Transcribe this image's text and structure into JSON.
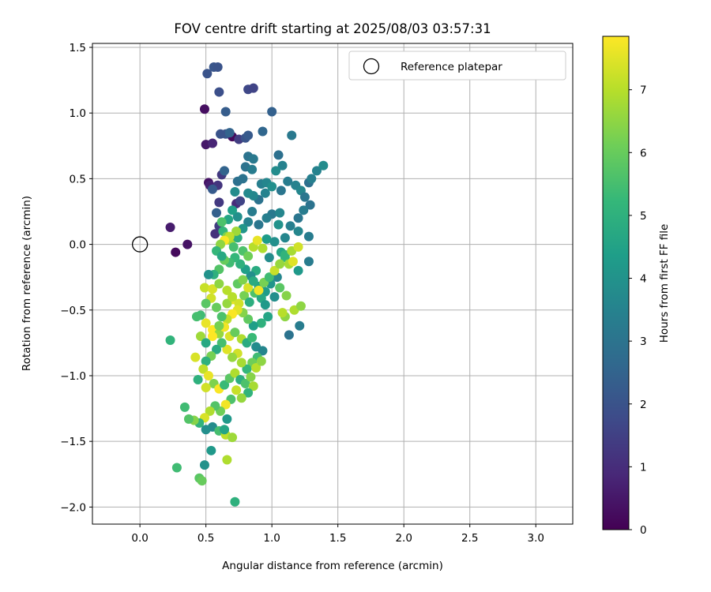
{
  "chart_data": {
    "type": "scatter",
    "title": "FOV centre drift starting at 2025/08/03 03:57:31",
    "xlabel": "Angular distance from reference (arcmin)",
    "ylabel": "Rotation from reference (arcmin)",
    "xlim": [
      -0.36,
      3.28
    ],
    "ylim": [
      -2.13,
      1.53
    ],
    "xticks": [
      0.0,
      0.5,
      1.0,
      1.5,
      2.0,
      2.5,
      3.0
    ],
    "xtick_labels": [
      "0.0",
      "0.5",
      "1.0",
      "1.5",
      "2.0",
      "2.5",
      "3.0"
    ],
    "yticks": [
      1.5,
      1.0,
      0.5,
      0.0,
      -0.5,
      -1.0,
      -1.5,
      -2.0
    ],
    "ytick_labels": [
      "1.5",
      "1.0",
      "0.5",
      "0.0",
      "−0.5",
      "−1.0",
      "−1.5",
      "−2.0"
    ],
    "grid": true,
    "legend": {
      "placement": "top-right",
      "entries": [
        "Reference platepar"
      ]
    },
    "reference_point": {
      "x": 0.0,
      "y": 0.0
    },
    "colorbar": {
      "label": "Hours from first FF file",
      "range": [
        0,
        7.85
      ],
      "ticks": [
        0,
        1,
        2,
        3,
        4,
        5,
        6,
        7
      ],
      "tick_labels": [
        "0",
        "1",
        "2",
        "3",
        "4",
        "5",
        "6",
        "7"
      ],
      "colormap": "viridis"
    },
    "series": [
      {
        "points": [
          [
            0.23,
            0.13,
            0.6
          ],
          [
            0.27,
            -0.06,
            0.2
          ],
          [
            0.36,
            0.0,
            0.4
          ],
          [
            0.49,
            1.03,
            0.3
          ],
          [
            0.5,
            0.76,
            0.5
          ],
          [
            0.52,
            0.47,
            0.4
          ],
          [
            0.55,
            0.77,
            0.8
          ],
          [
            0.53,
            0.45,
            0.7
          ],
          [
            0.7,
            0.82,
            0.2
          ],
          [
            0.51,
            1.3,
            2.0
          ],
          [
            0.56,
            1.35,
            2.1
          ],
          [
            0.59,
            1.35,
            2.0
          ],
          [
            0.6,
            1.16,
            1.9
          ],
          [
            0.65,
            1.01,
            2.3
          ],
          [
            0.82,
            1.18,
            1.7
          ],
          [
            0.86,
            1.19,
            1.6
          ],
          [
            0.65,
            0.84,
            2.1
          ],
          [
            0.68,
            0.85,
            2.5
          ],
          [
            0.61,
            0.84,
            2.0
          ],
          [
            0.75,
            0.8,
            1.4
          ],
          [
            0.8,
            0.81,
            2.0
          ],
          [
            0.82,
            0.83,
            2.2
          ],
          [
            0.59,
            0.45,
            1.2
          ],
          [
            0.62,
            0.53,
            1.3
          ],
          [
            0.64,
            0.56,
            2.5
          ],
          [
            0.6,
            0.32,
            1.3
          ],
          [
            0.55,
            0.42,
            2.2
          ],
          [
            0.58,
            0.24,
            2.4
          ],
          [
            0.6,
            0.14,
            1.4
          ],
          [
            0.57,
            0.08,
            1.1
          ],
          [
            0.73,
            0.31,
            1.0
          ],
          [
            0.76,
            0.33,
            1.6
          ],
          [
            0.82,
            0.67,
            3.0
          ],
          [
            0.86,
            0.65,
            3.2
          ],
          [
            0.93,
            0.86,
            2.6
          ],
          [
            1.0,
            1.01,
            2.4
          ],
          [
            1.15,
            0.83,
            3.2
          ],
          [
            1.05,
            0.68,
            2.9
          ],
          [
            1.08,
            0.6,
            3.5
          ],
          [
            0.8,
            0.59,
            3.0
          ],
          [
            0.85,
            0.57,
            3.3
          ],
          [
            0.92,
            0.46,
            3.4
          ],
          [
            0.96,
            0.47,
            3.6
          ],
          [
            1.0,
            0.44,
            3.9
          ],
          [
            1.03,
            0.56,
            3.8
          ],
          [
            1.07,
            0.41,
            3.1
          ],
          [
            0.95,
            0.39,
            3.5
          ],
          [
            0.9,
            0.34,
            3.0
          ],
          [
            0.86,
            0.37,
            3.6
          ],
          [
            0.82,
            0.39,
            3.7
          ],
          [
            0.72,
            0.4,
            3.8
          ],
          [
            0.74,
            0.48,
            2.9
          ],
          [
            0.78,
            0.5,
            3.0
          ],
          [
            1.12,
            0.48,
            3.3
          ],
          [
            1.18,
            0.45,
            3.5
          ],
          [
            1.22,
            0.41,
            3.6
          ],
          [
            1.25,
            0.36,
            3.1
          ],
          [
            1.28,
            0.47,
            2.9
          ],
          [
            1.3,
            0.5,
            3.4
          ],
          [
            1.34,
            0.56,
            3.5
          ],
          [
            1.39,
            0.6,
            3.8
          ],
          [
            1.29,
            0.3,
            3.0
          ],
          [
            1.24,
            0.26,
            3.3
          ],
          [
            1.2,
            0.2,
            3.1
          ],
          [
            1.14,
            0.14,
            3.4
          ],
          [
            1.2,
            0.1,
            3.6
          ],
          [
            1.28,
            0.06,
            3.3
          ],
          [
            1.1,
            0.05,
            3.6
          ],
          [
            1.05,
            0.15,
            4.0
          ],
          [
            1.0,
            0.23,
            3.2
          ],
          [
            1.06,
            0.24,
            3.6
          ],
          [
            0.96,
            0.2,
            3.4
          ],
          [
            0.9,
            0.15,
            3.1
          ],
          [
            0.85,
            0.25,
            3.3
          ],
          [
            0.82,
            0.17,
            3.5
          ],
          [
            0.78,
            0.12,
            4.1
          ],
          [
            0.74,
            0.21,
            3.9
          ],
          [
            0.7,
            0.26,
            4.4
          ],
          [
            0.67,
            0.19,
            4.6
          ],
          [
            0.63,
            0.1,
            5.2
          ],
          [
            0.62,
            0.17,
            5.6
          ],
          [
            0.66,
            0.06,
            6.3
          ],
          [
            0.69,
            0.03,
            6.8
          ],
          [
            0.71,
            -0.02,
            5.5
          ],
          [
            0.74,
            0.05,
            4.9
          ],
          [
            0.78,
            -0.05,
            5.6
          ],
          [
            0.82,
            -0.09,
            6.1
          ],
          [
            0.86,
            -0.02,
            7.0
          ],
          [
            0.89,
            0.03,
            7.6
          ],
          [
            0.93,
            -0.03,
            6.9
          ],
          [
            0.96,
            0.04,
            4.3
          ],
          [
            0.98,
            -0.1,
            3.8
          ],
          [
            1.02,
            0.02,
            3.9
          ],
          [
            1.07,
            -0.06,
            4.6
          ],
          [
            1.1,
            -0.1,
            5.2
          ],
          [
            1.13,
            -0.15,
            6.8
          ],
          [
            1.16,
            -0.13,
            7.5
          ],
          [
            1.2,
            -0.2,
            4.2
          ],
          [
            1.28,
            -0.13,
            3.3
          ],
          [
            1.04,
            -0.25,
            3.6
          ],
          [
            0.99,
            -0.3,
            4.1
          ],
          [
            0.95,
            -0.36,
            4.3
          ],
          [
            0.9,
            -0.32,
            4.5
          ],
          [
            0.88,
            -0.2,
            4.8
          ],
          [
            0.84,
            -0.24,
            3.9
          ],
          [
            0.8,
            -0.19,
            4.4
          ],
          [
            0.76,
            -0.15,
            5.0
          ],
          [
            0.72,
            -0.1,
            5.2
          ],
          [
            0.68,
            -0.14,
            5.4
          ],
          [
            0.64,
            -0.12,
            6.0
          ],
          [
            0.6,
            -0.19,
            5.7
          ],
          [
            0.56,
            -0.23,
            5.0
          ],
          [
            0.52,
            -0.23,
            4.0
          ],
          [
            0.49,
            -0.33,
            7.2
          ],
          [
            0.55,
            -0.34,
            7.4
          ],
          [
            0.6,
            -0.3,
            6.5
          ],
          [
            0.66,
            -0.35,
            7.0
          ],
          [
            0.7,
            -0.42,
            7.6
          ],
          [
            0.75,
            -0.45,
            7.3
          ],
          [
            0.79,
            -0.39,
            6.2
          ],
          [
            0.83,
            -0.44,
            4.9
          ],
          [
            0.87,
            -0.37,
            5.6
          ],
          [
            0.92,
            -0.41,
            4.7
          ],
          [
            0.95,
            -0.46,
            4.2
          ],
          [
            1.02,
            -0.4,
            3.9
          ],
          [
            1.06,
            -0.33,
            5.8
          ],
          [
            1.11,
            -0.39,
            6.4
          ],
          [
            1.17,
            -0.5,
            6.9
          ],
          [
            1.22,
            -0.47,
            6.5
          ],
          [
            1.21,
            -0.62,
            3.3
          ],
          [
            1.13,
            -0.69,
            3.0
          ],
          [
            1.1,
            -0.55,
            6.5
          ],
          [
            1.08,
            -0.52,
            7.0
          ],
          [
            0.97,
            -0.55,
            4.6
          ],
          [
            0.92,
            -0.6,
            5.0
          ],
          [
            0.86,
            -0.62,
            4.4
          ],
          [
            0.82,
            -0.57,
            5.9
          ],
          [
            0.78,
            -0.52,
            6.4
          ],
          [
            0.74,
            -0.5,
            7.5
          ],
          [
            0.7,
            -0.53,
            7.8
          ],
          [
            0.66,
            -0.57,
            7.1
          ],
          [
            0.62,
            -0.55,
            5.6
          ],
          [
            0.58,
            -0.48,
            6.0
          ],
          [
            0.54,
            -0.41,
            7.3
          ],
          [
            0.5,
            -0.45,
            5.8
          ],
          [
            0.46,
            -0.54,
            5.4
          ],
          [
            0.5,
            -0.6,
            7.6
          ],
          [
            0.55,
            -0.65,
            7.9
          ],
          [
            0.6,
            -0.68,
            6.6
          ],
          [
            0.64,
            -0.63,
            7.7
          ],
          [
            0.68,
            -0.7,
            7.4
          ],
          [
            0.72,
            -0.67,
            6.0
          ],
          [
            0.77,
            -0.72,
            6.9
          ],
          [
            0.81,
            -0.75,
            4.8
          ],
          [
            0.85,
            -0.71,
            5.3
          ],
          [
            0.88,
            -0.78,
            3.8
          ],
          [
            0.93,
            -0.81,
            3.6
          ],
          [
            0.89,
            -0.86,
            5.4
          ],
          [
            0.85,
            -0.9,
            6.1
          ],
          [
            0.81,
            -0.95,
            5.2
          ],
          [
            0.77,
            -0.9,
            6.8
          ],
          [
            0.74,
            -0.83,
            7.3
          ],
          [
            0.7,
            -0.86,
            6.6
          ],
          [
            0.66,
            -0.8,
            7.5
          ],
          [
            0.62,
            -0.75,
            5.5
          ],
          [
            0.58,
            -0.8,
            4.8
          ],
          [
            0.54,
            -0.85,
            6.2
          ],
          [
            0.5,
            -0.89,
            5.0
          ],
          [
            0.48,
            -0.95,
            7.1
          ],
          [
            0.52,
            -1.0,
            7.6
          ],
          [
            0.56,
            -1.06,
            6.3
          ],
          [
            0.6,
            -1.1,
            7.8
          ],
          [
            0.64,
            -1.07,
            5.3
          ],
          [
            0.68,
            -1.02,
            5.8
          ],
          [
            0.72,
            -0.98,
            6.9
          ],
          [
            0.76,
            -1.03,
            4.9
          ],
          [
            0.8,
            -1.06,
            5.6
          ],
          [
            0.84,
            -1.01,
            6.4
          ],
          [
            0.88,
            -0.94,
            7.0
          ],
          [
            0.92,
            -0.89,
            6.5
          ],
          [
            0.86,
            -1.08,
            6.8
          ],
          [
            0.82,
            -1.13,
            5.1
          ],
          [
            0.77,
            -1.17,
            6.6
          ],
          [
            0.73,
            -1.11,
            7.2
          ],
          [
            0.69,
            -1.18,
            5.6
          ],
          [
            0.65,
            -1.22,
            7.7
          ],
          [
            0.61,
            -1.27,
            6.1
          ],
          [
            0.57,
            -1.23,
            5.7
          ],
          [
            0.53,
            -1.27,
            6.9
          ],
          [
            0.49,
            -1.32,
            7.4
          ],
          [
            0.45,
            -1.36,
            5.1
          ],
          [
            0.41,
            -1.34,
            6.4
          ],
          [
            0.37,
            -1.33,
            5.7
          ],
          [
            0.34,
            -1.24,
            5.4
          ],
          [
            0.55,
            -1.39,
            3.8
          ],
          [
            0.6,
            -1.42,
            5.5
          ],
          [
            0.65,
            -1.45,
            7.1
          ],
          [
            0.7,
            -1.47,
            6.7
          ],
          [
            0.64,
            -1.41,
            4.6
          ],
          [
            0.66,
            -1.33,
            4.2
          ],
          [
            0.5,
            -1.41,
            3.9
          ],
          [
            0.49,
            -1.68,
            4.0
          ],
          [
            0.54,
            -1.57,
            4.2
          ],
          [
            0.66,
            -1.64,
            6.9
          ],
          [
            0.45,
            -1.78,
            5.8
          ],
          [
            0.47,
            -1.8,
            6.0
          ],
          [
            0.28,
            -1.7,
            5.4
          ],
          [
            0.72,
            -1.96,
            5.0
          ],
          [
            0.23,
            -0.73,
            5.1
          ],
          [
            0.42,
            -0.86,
            7.4
          ],
          [
            0.44,
            -1.03,
            5.0
          ],
          [
            0.5,
            -1.09,
            7.3
          ],
          [
            0.43,
            -0.55,
            5.5
          ],
          [
            0.46,
            -0.7,
            6.7
          ],
          [
            0.5,
            -0.75,
            4.7
          ],
          [
            0.55,
            -0.7,
            7.9
          ],
          [
            0.6,
            -0.62,
            6.2
          ],
          [
            0.66,
            -0.45,
            6.6
          ],
          [
            0.7,
            -0.4,
            7.0
          ],
          [
            0.74,
            -0.3,
            5.9
          ],
          [
            0.78,
            -0.27,
            6.3
          ],
          [
            0.82,
            -0.33,
            7.4
          ],
          [
            0.86,
            -0.28,
            4.8
          ],
          [
            0.9,
            -0.35,
            7.7
          ],
          [
            0.94,
            -0.29,
            6.2
          ],
          [
            0.98,
            -0.25,
            5.4
          ],
          [
            1.02,
            -0.2,
            7.2
          ],
          [
            1.06,
            -0.15,
            6.6
          ],
          [
            1.1,
            -0.08,
            5.1
          ],
          [
            1.15,
            -0.05,
            6.8
          ],
          [
            1.2,
            -0.02,
            7.3
          ],
          [
            0.73,
            0.1,
            6.7
          ],
          [
            0.68,
            0.06,
            7.1
          ],
          [
            0.64,
            0.03,
            7.8
          ],
          [
            0.61,
            0.0,
            6.5
          ],
          [
            0.58,
            -0.05,
            5.2
          ],
          [
            0.62,
            -0.09,
            4.7
          ]
        ]
      }
    ]
  }
}
